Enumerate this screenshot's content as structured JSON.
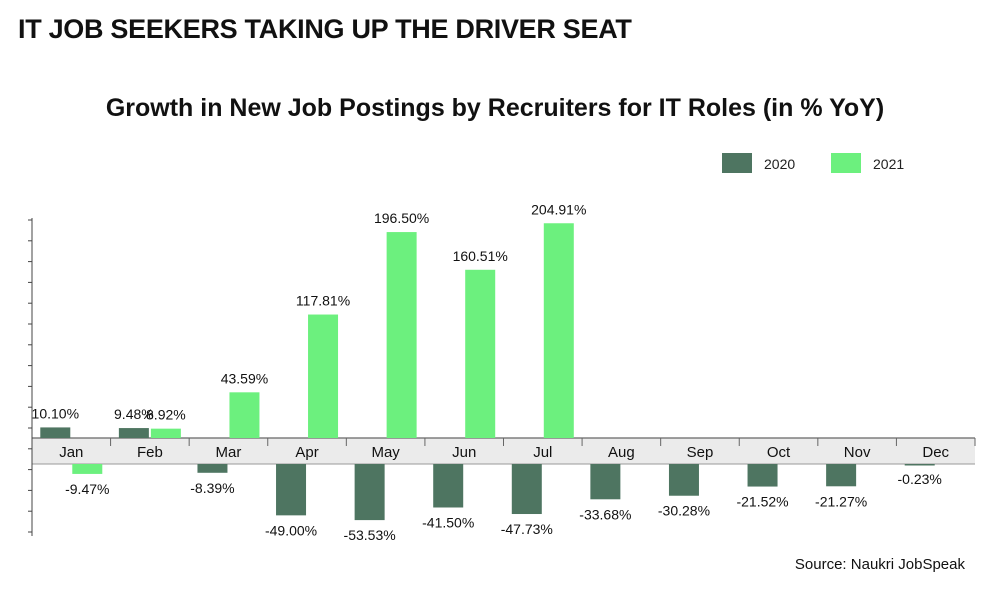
{
  "headline": "IT JOB SEEKERS TAKING UP THE DRIVER SEAT",
  "source": "Source:  Naukri JobSpeak",
  "colors": {
    "2020": "#4e7561",
    "2021": "#6cf07e"
  },
  "chart_data": {
    "type": "bar",
    "title": "Growth in New Job Postings by Recruiters for IT Roles (in % YoY)",
    "xlabel": "",
    "ylabel": "",
    "categories": [
      "Jan",
      "Feb",
      "Mar",
      "Apr",
      "May",
      "Jun",
      "Jul",
      "Aug",
      "Sep",
      "Oct",
      "Nov",
      "Dec"
    ],
    "legend_position": "top-right",
    "grid": false,
    "series": [
      {
        "name": "2020",
        "values": [
          10.1,
          9.48,
          -8.39,
          -49.0,
          -53.53,
          -41.5,
          -47.73,
          -33.68,
          -30.28,
          -21.52,
          -21.27,
          -0.23
        ],
        "labels": [
          "10.10%",
          "9.48%",
          "-8.39%",
          "-49.00%",
          "-53.53%",
          "-41.50%",
          "-47.73%",
          "-33.68%",
          "-30.28%",
          "-21.52%",
          "-21.27%",
          "-0.23%"
        ]
      },
      {
        "name": "2021",
        "values": [
          -9.47,
          8.92,
          43.59,
          117.81,
          196.5,
          160.51,
          204.91,
          null,
          null,
          null,
          null,
          null
        ],
        "labels": [
          "-9.47%",
          "8.92%",
          "43.59%",
          "117.81%",
          "196.50%",
          "160.51%",
          "204.91%",
          null,
          null,
          null,
          null,
          null
        ]
      }
    ]
  }
}
